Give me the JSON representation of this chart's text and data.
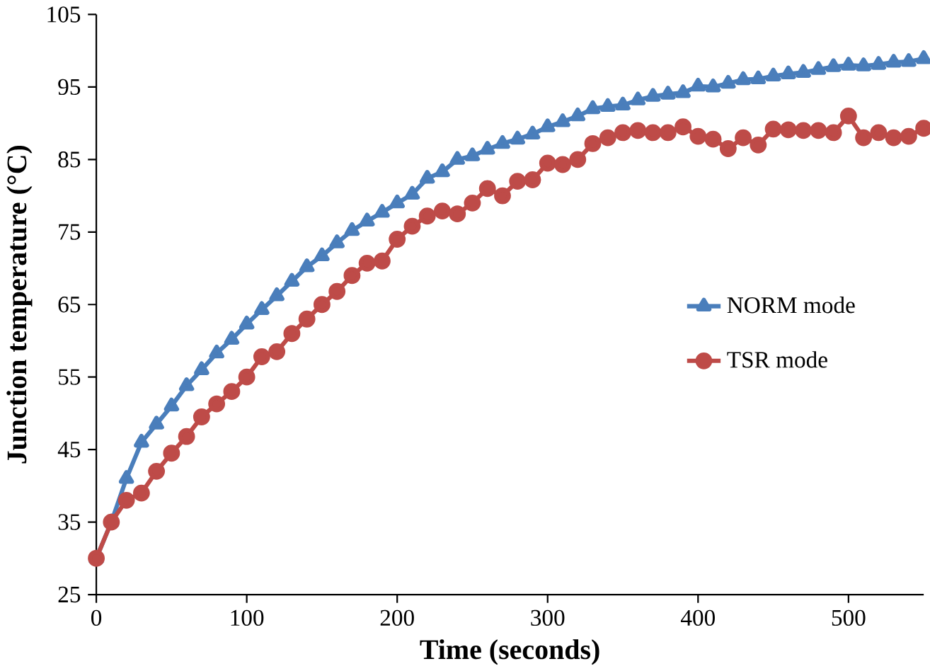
{
  "chart_data": {
    "type": "line",
    "xlabel": "Time (seconds)",
    "ylabel": "Junction temperature (°C)",
    "x": [
      0,
      10,
      20,
      30,
      40,
      50,
      60,
      70,
      80,
      90,
      100,
      110,
      120,
      130,
      140,
      150,
      160,
      170,
      180,
      190,
      200,
      210,
      220,
      230,
      240,
      250,
      260,
      270,
      280,
      290,
      300,
      310,
      320,
      330,
      340,
      350,
      360,
      370,
      380,
      390,
      400,
      410,
      420,
      430,
      440,
      450,
      460,
      470,
      480,
      490,
      500,
      510,
      520,
      530,
      540,
      550
    ],
    "series": [
      {
        "name": "NORM mode",
        "color": "#4a7ebb",
        "marker": "triangle",
        "values": [
          30,
          35,
          41,
          46,
          48.5,
          51,
          53.8,
          56,
          58.3,
          60.2,
          62.3,
          64.3,
          66.2,
          68.2,
          70.2,
          71.7,
          73.5,
          75.2,
          76.5,
          77.7,
          79,
          80.2,
          82.4,
          83.3,
          85,
          85.5,
          86.4,
          87.2,
          87.8,
          88.5,
          89.5,
          90.2,
          91,
          92,
          92.3,
          92.5,
          93.2,
          93.7,
          94,
          94.2,
          95.1,
          95,
          95.5,
          96,
          96.1,
          96.5,
          96.8,
          97,
          97.4,
          97.8,
          98,
          97.9,
          98.1,
          98.4,
          98.5,
          98.9
        ]
      },
      {
        "name": "TSR mode",
        "color": "#be4b48",
        "marker": "circle",
        "values": [
          30,
          35,
          38,
          39,
          42,
          44.5,
          46.8,
          49.5,
          51.3,
          53,
          55,
          57.8,
          58.5,
          61,
          63,
          65,
          66.8,
          69,
          70.7,
          71,
          74,
          75.8,
          77.2,
          77.9,
          77.5,
          79,
          81,
          80,
          82,
          82.2,
          84.5,
          84.3,
          85,
          87.2,
          88,
          88.7,
          89,
          88.7,
          88.7,
          89.5,
          88.2,
          87.8,
          86.5,
          88,
          87,
          89.2,
          89.1,
          89,
          89,
          88.7,
          91,
          88,
          88.7,
          88,
          88.2,
          89.3
        ]
      }
    ],
    "xlim": [
      0,
      550
    ],
    "xticks": [
      0,
      100,
      200,
      300,
      400,
      500
    ],
    "ylim": [
      25,
      105
    ],
    "yticks": [
      25,
      35,
      45,
      55,
      65,
      75,
      85,
      95,
      105
    ],
    "grid": false,
    "legend": "right",
    "line_style": "solid"
  }
}
